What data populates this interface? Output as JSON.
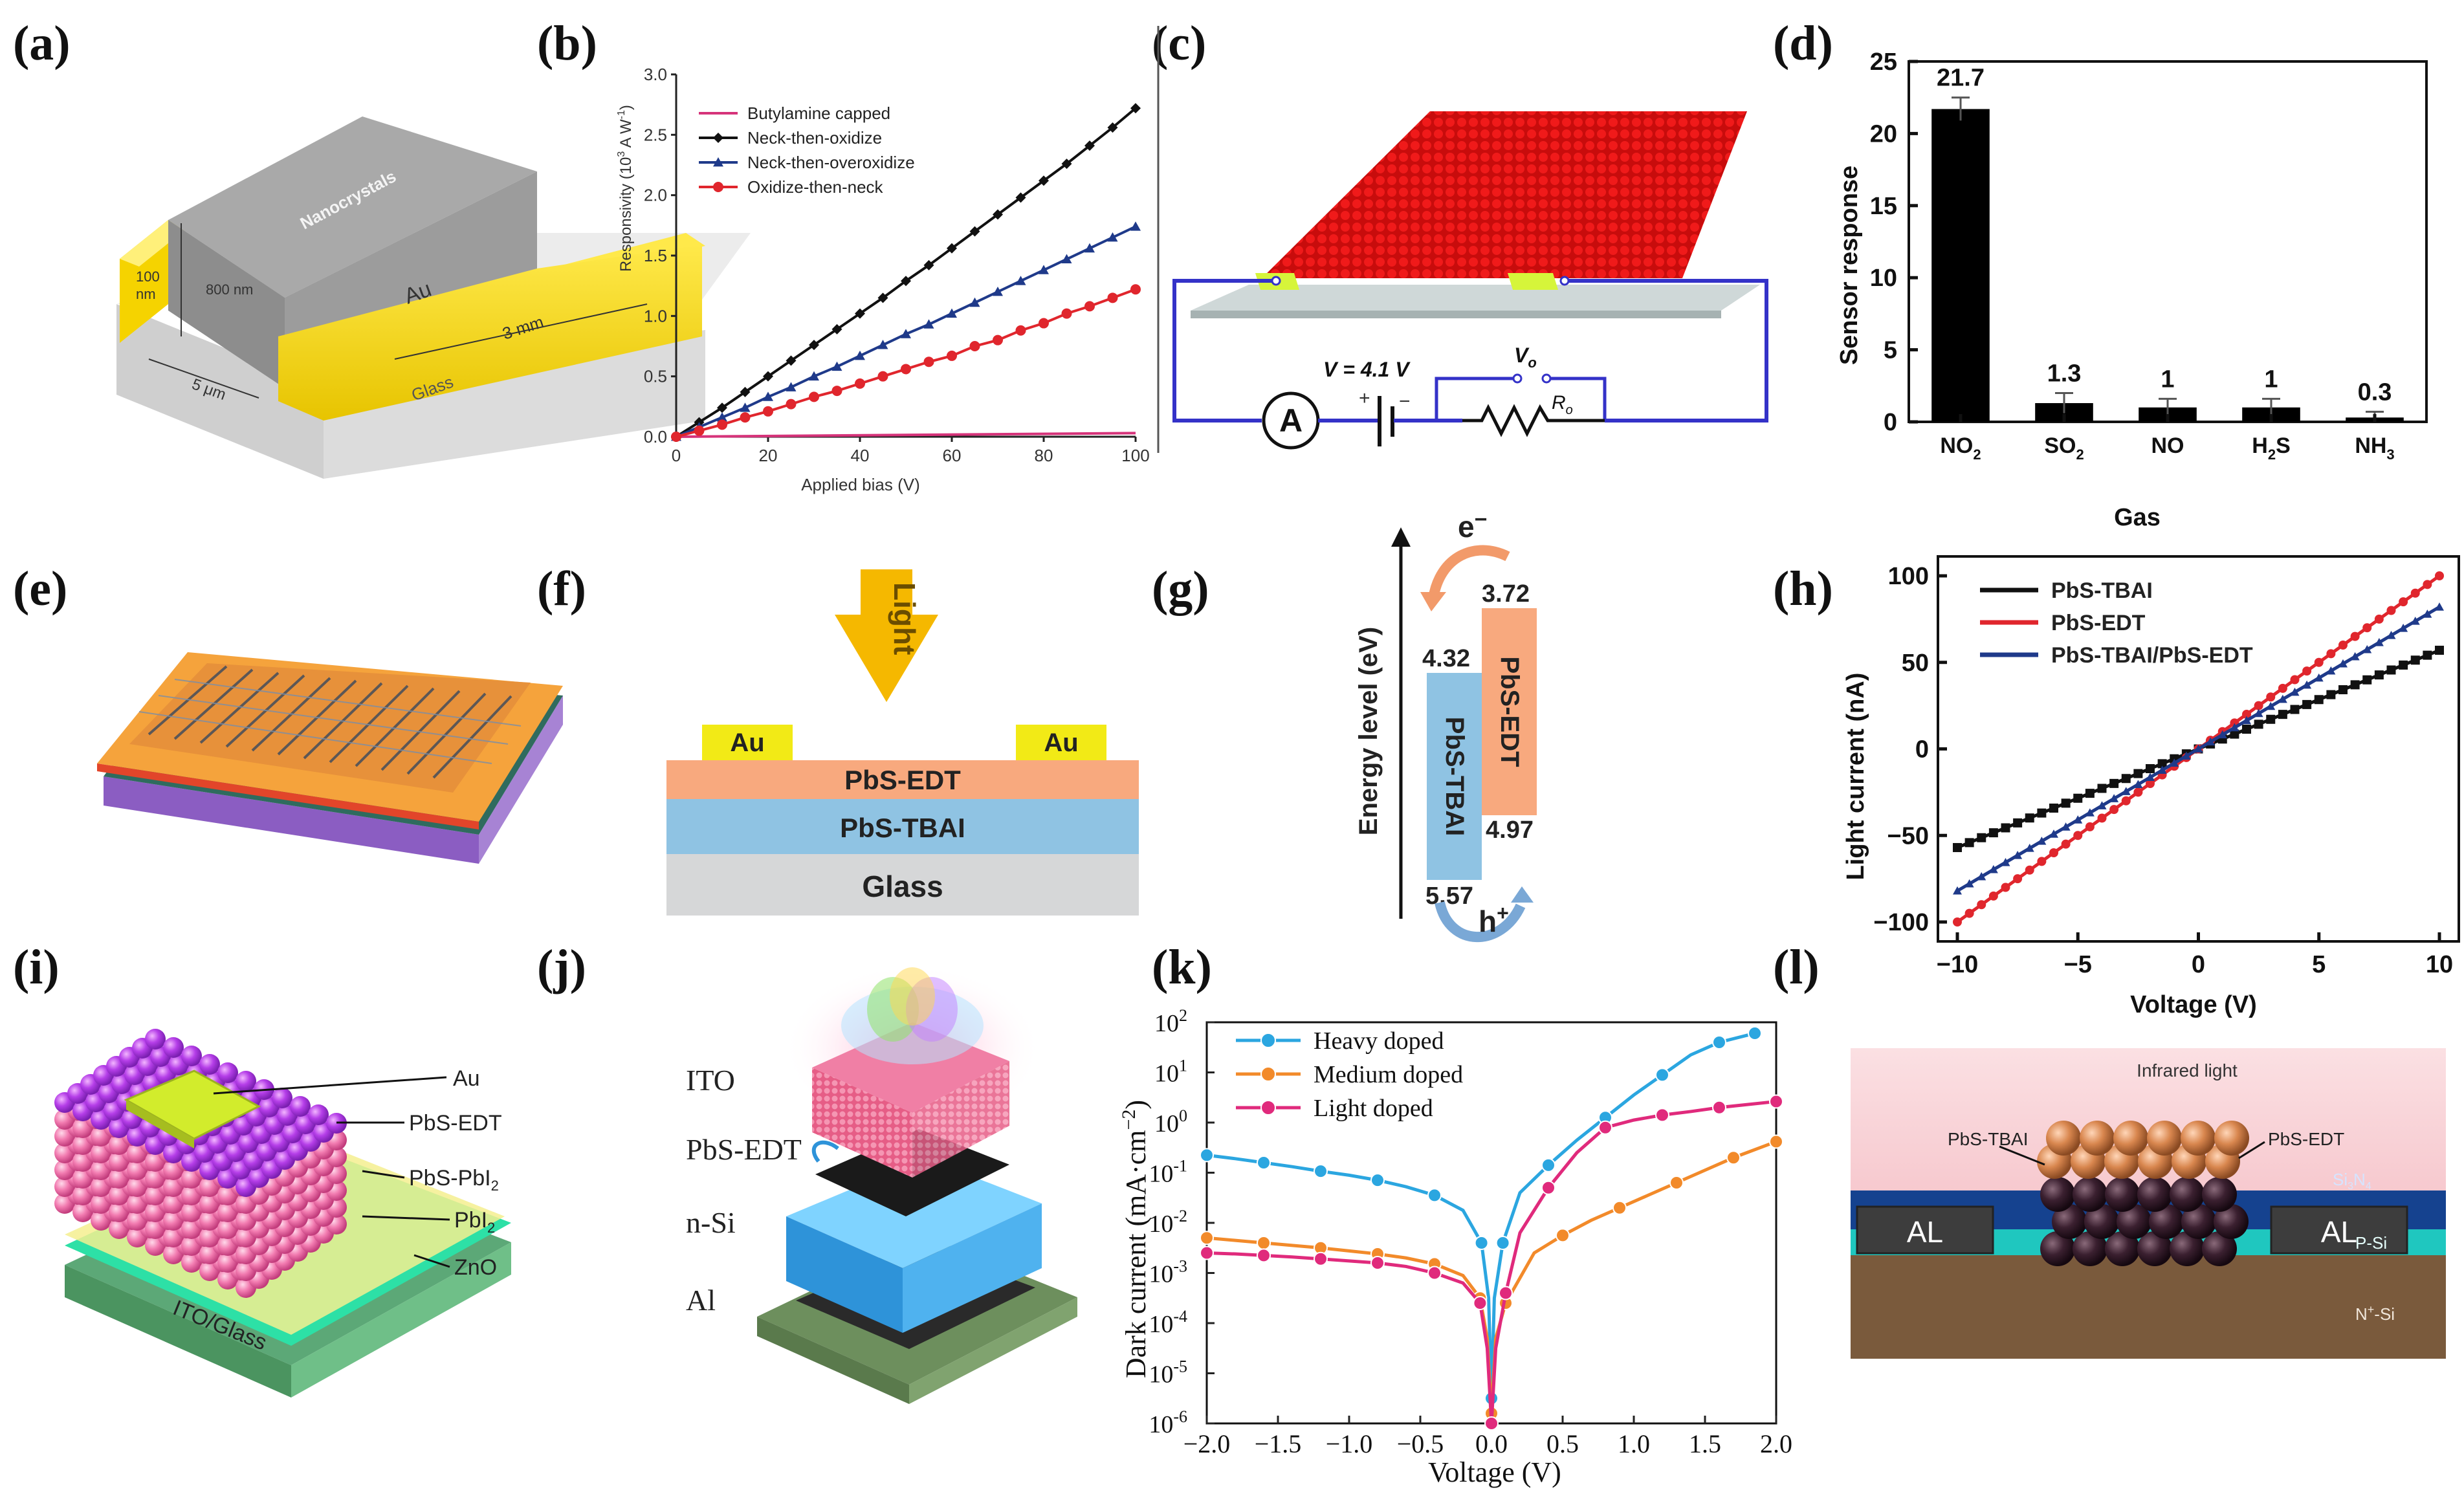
{
  "labels": [
    "(a)",
    "(b)",
    "(c)",
    "(d)",
    "(e)",
    "(f)",
    "(g)",
    "(h)",
    "(i)",
    "(j)",
    "(k)",
    "(l)"
  ],
  "panel_a": {
    "block_label": "Nanocrystals",
    "thickness1": "100",
    "thickness1_unit": "nm",
    "thickness2": "800 nm",
    "electrode": "Au",
    "length": "3 mm",
    "gap": "5 μm",
    "substrate": "Glass"
  },
  "panel_c": {
    "voltage": "V = 4.1 V",
    "vo": "V",
    "vo_sub": "o",
    "ro": "R",
    "ro_sub": "o",
    "ammeter": "A",
    "plus": "+",
    "minus": "−"
  },
  "panel_f": {
    "light": "Light",
    "electrode_left": "Au",
    "electrode_right": "Au",
    "layer_top": "PbS-EDT",
    "layer_mid": "PbS-TBAI",
    "layer_bottom": "Glass"
  },
  "panel_g": {
    "electron": "e",
    "electron_sign": "−",
    "hole": "h",
    "hole_sign": "+",
    "ylabel": "Energy level (eV)",
    "left_block": "PbS-TBAI",
    "right_block": "PbS-EDT",
    "left_top": "4.32",
    "left_bottom": "5.57",
    "right_top": "3.72",
    "right_bottom": "4.97"
  },
  "panel_i": {
    "layers": [
      "Au",
      "PbS-EDT",
      "PbS-PbI",
      "PbI",
      "ZnO"
    ],
    "layer_subs": [
      "",
      "",
      "2",
      "2",
      ""
    ],
    "substrate": "ITO/Glass"
  },
  "panel_j": {
    "layers": [
      "ITO",
      "PbS-EDT",
      "n-Si",
      "Al"
    ]
  },
  "panel_l": {
    "light": "Infrared light",
    "left_layer": "PbS-TBAI",
    "right_layer": "PbS-EDT",
    "si3n4_a": "Si",
    "si3n4_b": "3",
    "si3n4_c": "N",
    "si3n4_d": "4",
    "electrode_left": "AL",
    "electrode_right": "AL",
    "p_si": "P-Si",
    "n_si": "N",
    "n_si_sup": "+",
    "n_si_tail": "-Si"
  },
  "chart_data": [
    {
      "id": "b",
      "type": "line",
      "xlabel": "Applied bias (V)",
      "ylabel": "Responsivity (10",
      "ylabel_sup": "3",
      "ylabel_tail": " A W",
      "ylabel_sup2": "-1",
      "ylabel_end": ")",
      "xlim": [
        0,
        100
      ],
      "ylim": [
        0,
        3.0
      ],
      "xticks": [
        0,
        20,
        40,
        60,
        80,
        100
      ],
      "yticks": [
        "0.0",
        "0.5",
        "1.0",
        "1.5",
        "2.0",
        "2.5",
        "3.0"
      ],
      "legend": "top-left",
      "series": [
        {
          "name": "Butylamine capped",
          "color": "#d6337a",
          "marker": "none",
          "x": [
            0,
            100
          ],
          "y": [
            0.0,
            0.03
          ]
        },
        {
          "name": "Neck-then-oxidize",
          "color": "#111111",
          "marker": "diamond",
          "x": [
            0,
            5,
            10,
            15,
            20,
            25,
            30,
            35,
            40,
            45,
            50,
            55,
            60,
            65,
            70,
            75,
            80,
            85,
            90,
            95,
            100
          ],
          "y": [
            0.0,
            0.12,
            0.24,
            0.37,
            0.5,
            0.63,
            0.76,
            0.89,
            1.02,
            1.15,
            1.29,
            1.42,
            1.56,
            1.7,
            1.84,
            1.98,
            2.12,
            2.26,
            2.41,
            2.56,
            2.72
          ]
        },
        {
          "name": "Neck-then-overoxidize",
          "color": "#1f3a8a",
          "marker": "triangle",
          "x": [
            0,
            5,
            10,
            15,
            20,
            25,
            30,
            35,
            40,
            45,
            50,
            55,
            60,
            65,
            70,
            75,
            80,
            85,
            90,
            95,
            100
          ],
          "y": [
            0.0,
            0.08,
            0.16,
            0.24,
            0.33,
            0.41,
            0.5,
            0.58,
            0.67,
            0.76,
            0.85,
            0.93,
            1.02,
            1.11,
            1.2,
            1.29,
            1.38,
            1.47,
            1.56,
            1.65,
            1.74
          ]
        },
        {
          "name": "Oxidize-then-neck",
          "color": "#e0262d",
          "marker": "circle",
          "x": [
            0,
            5,
            10,
            15,
            20,
            25,
            30,
            35,
            40,
            45,
            50,
            55,
            60,
            65,
            70,
            75,
            80,
            85,
            90,
            95,
            100
          ],
          "y": [
            0.0,
            0.05,
            0.1,
            0.16,
            0.21,
            0.27,
            0.33,
            0.38,
            0.44,
            0.5,
            0.56,
            0.62,
            0.67,
            0.75,
            0.8,
            0.88,
            0.94,
            1.02,
            1.08,
            1.15,
            1.22
          ]
        }
      ]
    },
    {
      "id": "d",
      "type": "bar",
      "xlabel": "Gas",
      "ylabel": "Sensor response",
      "ylim": [
        0,
        25
      ],
      "yticks": [
        "0",
        "5",
        "10",
        "15",
        "20",
        "25"
      ],
      "categories": [
        "NO",
        "SO",
        "NO",
        "H",
        "NH"
      ],
      "category_subs": [
        "2",
        "2",
        "",
        "2",
        "3"
      ],
      "category_tails": [
        "",
        "",
        "",
        "S",
        ""
      ],
      "values": [
        21.7,
        1.3,
        1.0,
        1.0,
        0.3
      ],
      "value_labels": [
        "21.7",
        "1.3",
        "1",
        "1",
        "0.3"
      ],
      "errors": [
        0.8,
        0.7,
        0.6,
        0.6,
        0.4
      ],
      "color": "#000000"
    },
    {
      "id": "h",
      "type": "line",
      "xlabel": "Voltage (V)",
      "ylabel": "Light current (nA)",
      "xlim": [
        -10,
        10
      ],
      "ylim": [
        -100,
        100
      ],
      "xticks": [
        "−10",
        "−5",
        "0",
        "5",
        "10"
      ],
      "yticks": [
        "100",
        "50",
        "0",
        "−50",
        "−100"
      ],
      "legend": "top-left",
      "series": [
        {
          "name": "PbS-TBAI",
          "color": "#111111",
          "marker": "square",
          "slope": 5.7
        },
        {
          "name": "PbS-EDT",
          "color": "#e0262d",
          "marker": "circle",
          "slope": 10.0
        },
        {
          "name": "PbS-TBAI/PbS-EDT",
          "color": "#1f3a8a",
          "marker": "triangle",
          "slope": 8.2
        }
      ]
    },
    {
      "id": "k",
      "type": "line",
      "xlabel": "Voltage (V)",
      "ylabel": "Dark current (mA·cm",
      "ylabel_sup": "−2",
      "ylabel_end": ")",
      "xlim": [
        -2.0,
        2.0
      ],
      "ylim_log10": [
        -6,
        2
      ],
      "xticks": [
        "−2.0",
        "−1.5",
        "−1.0",
        "−0.5",
        "0.0",
        "0.5",
        "1.0",
        "1.5",
        "2.0"
      ],
      "yticks_exp": [
        "2",
        "1",
        "0",
        "-1",
        "-2",
        "-3",
        "-4",
        "-5",
        "-6"
      ],
      "ytick_base": "10",
      "legend": "top-left",
      "series": [
        {
          "name": "Heavy doped",
          "color": "#2ba6e0",
          "x": [
            -2.0,
            -1.8,
            -1.6,
            -1.4,
            -1.2,
            -1.0,
            -0.8,
            -0.6,
            -0.4,
            -0.2,
            -0.07,
            -0.02,
            0.0,
            0.02,
            0.08,
            0.2,
            0.4,
            0.6,
            0.8,
            1.0,
            1.2,
            1.4,
            1.6,
            1.85
          ],
          "log_y": [
            -0.65,
            -0.72,
            -0.8,
            -0.88,
            -0.97,
            -1.05,
            -1.15,
            -1.28,
            -1.45,
            -1.75,
            -2.4,
            -3.5,
            -5.5,
            -3.5,
            -2.4,
            -1.4,
            -0.85,
            -0.35,
            0.1,
            0.55,
            0.95,
            1.35,
            1.6,
            1.78
          ]
        },
        {
          "name": "Medium doped",
          "color": "#f28a2a",
          "x": [
            -2.0,
            -1.8,
            -1.6,
            -1.4,
            -1.2,
            -1.0,
            -0.8,
            -0.6,
            -0.4,
            -0.2,
            -0.08,
            -0.03,
            0.0,
            0.03,
            0.1,
            0.3,
            0.5,
            0.7,
            0.9,
            1.1,
            1.3,
            1.5,
            1.7,
            2.0
          ],
          "log_y": [
            -2.3,
            -2.35,
            -2.4,
            -2.45,
            -2.5,
            -2.56,
            -2.62,
            -2.7,
            -2.82,
            -3.05,
            -3.5,
            -4.3,
            -5.8,
            -4.3,
            -3.6,
            -2.6,
            -2.25,
            -1.95,
            -1.7,
            -1.45,
            -1.2,
            -0.95,
            -0.7,
            -0.38
          ]
        },
        {
          "name": "Light doped",
          "color": "#e02a7c",
          "x": [
            -2.0,
            -1.8,
            -1.6,
            -1.4,
            -1.2,
            -1.0,
            -0.8,
            -0.6,
            -0.4,
            -0.2,
            -0.08,
            -0.03,
            0.0,
            0.03,
            0.1,
            0.2,
            0.4,
            0.6,
            0.8,
            1.0,
            1.2,
            1.4,
            1.6,
            2.0
          ],
          "log_y": [
            -2.6,
            -2.62,
            -2.65,
            -2.68,
            -2.72,
            -2.76,
            -2.8,
            -2.87,
            -3.0,
            -3.2,
            -3.6,
            -4.5,
            -6.0,
            -4.5,
            -3.4,
            -2.2,
            -1.3,
            -0.6,
            -0.1,
            0.05,
            0.15,
            0.22,
            0.3,
            0.42
          ]
        }
      ]
    }
  ]
}
